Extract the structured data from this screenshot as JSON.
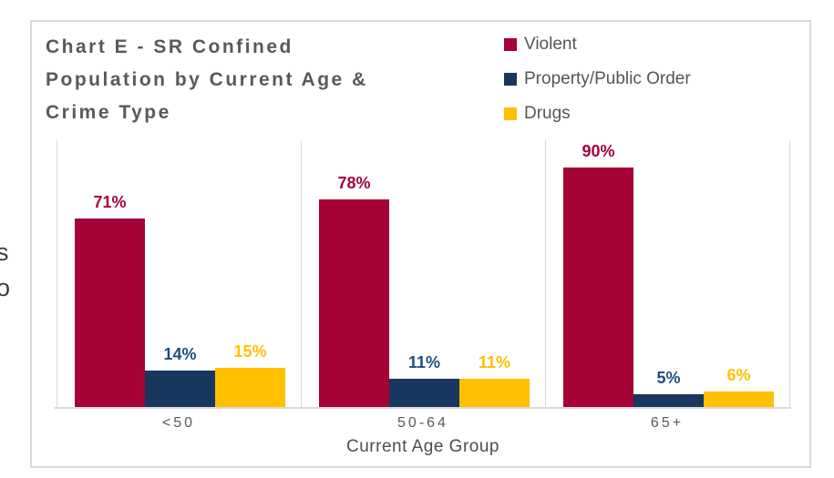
{
  "title": {
    "full": "Chart E - SR Confined Population by Current Age & Crime Type",
    "lines": [
      "Chart E - SR Confined",
      "Population by Current Age &",
      "Crime Type"
    ]
  },
  "cropped_edge_text": [
    "s",
    "o"
  ],
  "colors": {
    "violent": "#A50336",
    "property_public_order": "#17375E",
    "drugs": "#FFC000",
    "title_text": "#595959",
    "grid": "#D9D9D9",
    "card_border": "#D9D9D9"
  },
  "chart_data": {
    "type": "bar",
    "title": "Chart E - SR Confined Population by Current Age & Crime Type",
    "categories": [
      "<50",
      "50-64",
      "65+"
    ],
    "series": [
      {
        "name": "Violent",
        "color": "#A50336",
        "label_color": "#A50336",
        "values": [
          71,
          78,
          90
        ],
        "labels": [
          "71%",
          "78%",
          "90%"
        ]
      },
      {
        "name": "Property/Public Order",
        "color": "#17375E",
        "label_color": "#1F4E79",
        "values": [
          14,
          11,
          5
        ],
        "labels": [
          "14%",
          "11%",
          "5%"
        ]
      },
      {
        "name": "Drugs",
        "color": "#FFC000",
        "label_color": "#FFC000",
        "values": [
          15,
          11,
          6
        ],
        "labels": [
          "15%",
          "11%",
          "6%"
        ]
      }
    ],
    "value_suffix": "%",
    "xlabel": "Current Age Group",
    "ylabel": "",
    "ylim": [
      0,
      100
    ],
    "grid": "vertical-group-separators",
    "legend_position": "top-right",
    "data_labels": true
  }
}
